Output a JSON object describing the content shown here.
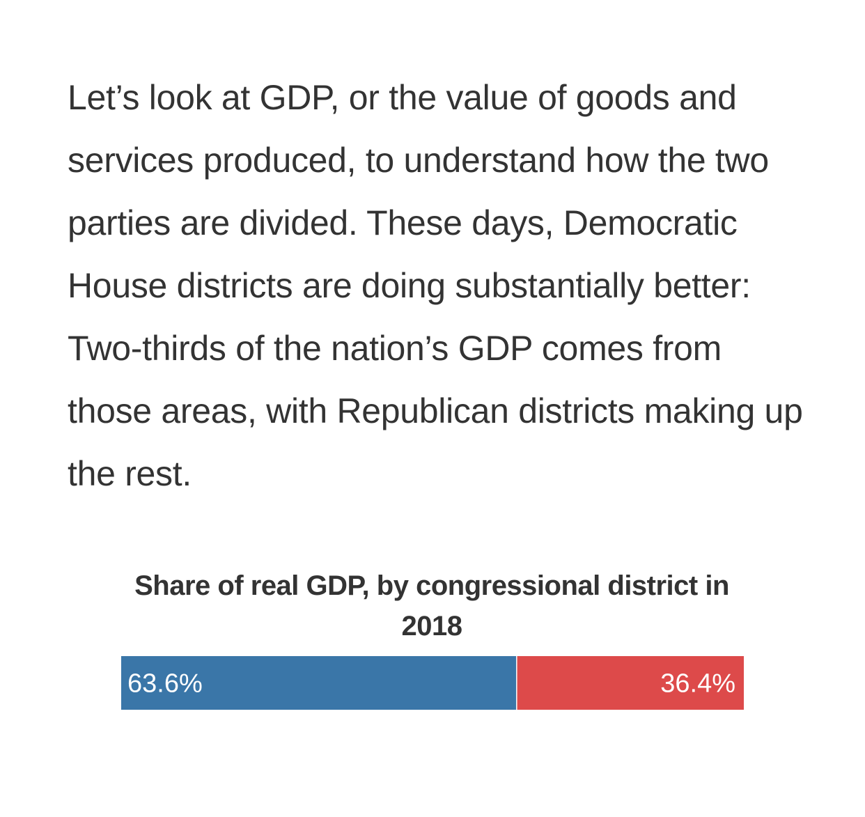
{
  "article": {
    "paragraph": "Let’s look at GDP, or the value of goods and services produced, to understand how the two parties are divided. These days, Democratic House districts are doing substantially better: Two-thirds of the nation’s GDP comes from those areas, with Republican districts making up the rest."
  },
  "chart_data": {
    "type": "bar",
    "orientation": "horizontal-stacked",
    "title": "Share of real GDP, by congressional district in 2018",
    "xlabel": "",
    "ylabel": "",
    "xlim": [
      0,
      100
    ],
    "grid": false,
    "legend": "none",
    "series": [
      {
        "value": 63.6,
        "label": "63.6%",
        "color": "#3a76a8"
      },
      {
        "value": 36.4,
        "label": "36.4%",
        "color": "#dd4a4a"
      }
    ]
  }
}
